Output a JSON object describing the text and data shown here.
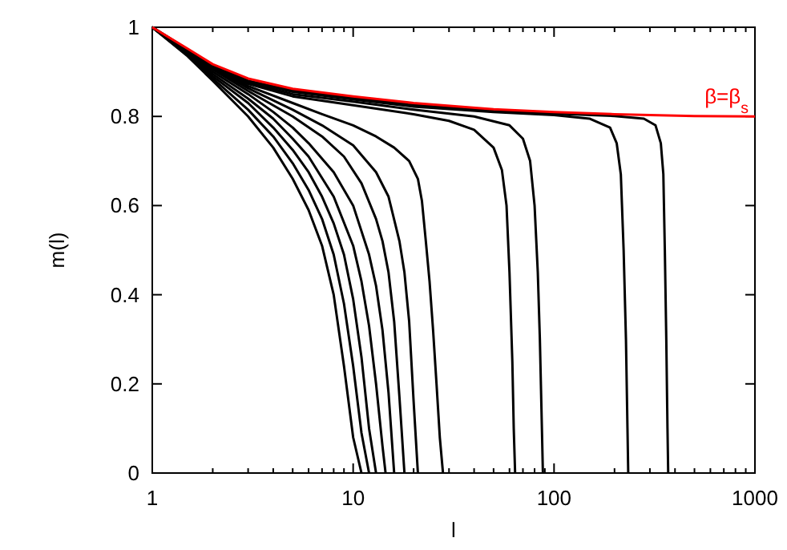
{
  "chart_data": {
    "type": "line",
    "xlabel": "l",
    "ylabel": "m(l)",
    "log": "x",
    "xlim": [
      1,
      1000
    ],
    "ylim": [
      0,
      1
    ],
    "xticks": [
      1,
      {
        "value": 2,
        "label": null
      },
      {
        "value": 3,
        "label": null
      },
      {
        "value": 4,
        "label": null
      },
      {
        "value": 5,
        "label": null
      },
      {
        "value": 6,
        "label": null
      },
      {
        "value": 7,
        "label": null
      },
      {
        "value": 8,
        "label": null
      },
      {
        "value": 9,
        "label": null
      },
      10,
      {
        "value": 20,
        "label": null
      },
      {
        "value": 30,
        "label": null
      },
      {
        "value": 40,
        "label": null
      },
      {
        "value": 50,
        "label": null
      },
      {
        "value": 60,
        "label": null
      },
      {
        "value": 70,
        "label": null
      },
      {
        "value": 80,
        "label": null
      },
      {
        "value": 90,
        "label": null
      },
      100,
      {
        "value": 200,
        "label": null
      },
      {
        "value": 300,
        "label": null
      },
      {
        "value": 400,
        "label": null
      },
      {
        "value": 500,
        "label": null
      },
      {
        "value": 600,
        "label": null
      },
      {
        "value": 700,
        "label": null
      },
      {
        "value": 800,
        "label": null
      },
      {
        "value": 900,
        "label": null
      },
      1000
    ],
    "yticks": [
      0,
      0.2,
      0.4,
      0.6,
      0.8,
      1
    ],
    "grid": false,
    "legend": false,
    "marker": "none",
    "line_style": "solid",
    "series": [
      {
        "color": "#000000",
        "x": [
          1,
          1.5,
          2,
          3,
          4,
          5,
          6,
          7,
          8,
          9,
          10,
          11
        ],
        "values": [
          1,
          0.935,
          0.88,
          0.8,
          0.73,
          0.66,
          0.59,
          0.51,
          0.4,
          0.24,
          0.08,
          0
        ]
      },
      {
        "color": "#000000",
        "x": [
          1,
          1.5,
          2,
          3,
          4,
          5,
          6,
          7,
          8,
          9,
          10,
          11,
          12
        ],
        "values": [
          1,
          0.937,
          0.885,
          0.815,
          0.755,
          0.695,
          0.635,
          0.57,
          0.49,
          0.38,
          0.24,
          0.09,
          0
        ]
      },
      {
        "color": "#000000",
        "x": [
          1,
          1.5,
          2,
          3,
          4,
          5,
          6,
          7,
          8,
          9,
          10,
          11,
          12,
          13
        ],
        "values": [
          1,
          0.939,
          0.89,
          0.83,
          0.775,
          0.725,
          0.675,
          0.62,
          0.56,
          0.49,
          0.39,
          0.26,
          0.1,
          0
        ]
      },
      {
        "color": "#000000",
        "x": [
          1,
          1.5,
          2,
          3,
          4,
          5,
          6,
          8,
          10,
          11,
          12,
          13,
          14,
          14.5
        ],
        "values": [
          1,
          0.941,
          0.895,
          0.84,
          0.795,
          0.75,
          0.71,
          0.62,
          0.51,
          0.43,
          0.33,
          0.2,
          0.06,
          0
        ]
      },
      {
        "color": "#000000",
        "x": [
          1,
          1.5,
          2,
          3,
          4,
          5,
          6,
          8,
          10,
          12,
          13,
          14,
          15,
          16
        ],
        "values": [
          1,
          0.943,
          0.9,
          0.85,
          0.81,
          0.775,
          0.74,
          0.675,
          0.6,
          0.49,
          0.42,
          0.32,
          0.18,
          0
        ]
      },
      {
        "color": "#000000",
        "x": [
          1,
          1.5,
          2,
          3,
          5,
          7,
          9,
          11,
          13,
          14,
          15,
          16,
          17,
          18
        ],
        "values": [
          1,
          0.945,
          0.905,
          0.857,
          0.8,
          0.755,
          0.71,
          0.65,
          0.57,
          0.52,
          0.45,
          0.34,
          0.17,
          0
        ]
      },
      {
        "color": "#000000",
        "x": [
          1,
          1.5,
          2,
          3,
          5,
          7,
          10,
          13,
          15,
          17,
          18,
          19,
          20,
          21
        ],
        "values": [
          1,
          0.946,
          0.908,
          0.863,
          0.815,
          0.78,
          0.735,
          0.675,
          0.62,
          0.52,
          0.45,
          0.34,
          0.16,
          0
        ]
      },
      {
        "color": "#000000",
        "x": [
          1,
          1.5,
          2,
          3,
          5,
          7,
          10,
          13,
          16,
          19,
          21,
          22,
          23,
          24,
          25,
          26,
          27,
          28
        ],
        "values": [
          1,
          0.947,
          0.91,
          0.868,
          0.83,
          0.805,
          0.78,
          0.755,
          0.73,
          0.7,
          0.66,
          0.61,
          0.52,
          0.43,
          0.32,
          0.2,
          0.08,
          0
        ]
      },
      {
        "color": "#000000",
        "x": [
          1,
          1.5,
          2,
          3,
          5,
          10,
          20,
          30,
          40,
          50,
          55,
          58,
          60,
          62,
          63,
          64
        ],
        "values": [
          1,
          0.948,
          0.912,
          0.873,
          0.845,
          0.825,
          0.805,
          0.79,
          0.77,
          0.73,
          0.68,
          0.6,
          0.45,
          0.25,
          0.1,
          0
        ]
      },
      {
        "color": "#000000",
        "x": [
          1,
          1.5,
          2,
          3,
          5,
          10,
          20,
          40,
          60,
          70,
          76,
          80,
          83,
          85,
          87,
          88
        ],
        "values": [
          1,
          0.949,
          0.913,
          0.876,
          0.85,
          0.833,
          0.815,
          0.8,
          0.78,
          0.75,
          0.7,
          0.6,
          0.45,
          0.3,
          0.1,
          0
        ]
      },
      {
        "color": "#000000",
        "x": [
          1,
          1.5,
          2,
          3,
          5,
          10,
          20,
          50,
          100,
          150,
          190,
          205,
          215,
          222,
          228,
          232,
          234
        ],
        "values": [
          1,
          0.95,
          0.914,
          0.879,
          0.855,
          0.838,
          0.822,
          0.81,
          0.803,
          0.795,
          0.775,
          0.74,
          0.67,
          0.5,
          0.3,
          0.1,
          0
        ]
      },
      {
        "color": "#000000",
        "x": [
          1,
          1.5,
          2,
          3,
          5,
          10,
          20,
          50,
          100,
          200,
          280,
          320,
          340,
          350,
          356,
          362,
          367,
          370
        ],
        "values": [
          1,
          0.95,
          0.915,
          0.88,
          0.858,
          0.842,
          0.826,
          0.812,
          0.806,
          0.801,
          0.795,
          0.78,
          0.74,
          0.67,
          0.5,
          0.3,
          0.1,
          0
        ]
      },
      {
        "name": "β=β$_{s}$",
        "color": "#ff0000",
        "x": [
          1,
          1.5,
          2,
          3,
          5,
          10,
          20,
          50,
          100,
          200,
          500,
          1000
        ],
        "values": [
          1,
          0.952,
          0.917,
          0.885,
          0.862,
          0.845,
          0.83,
          0.816,
          0.81,
          0.805,
          0.801,
          0.8
        ]
      }
    ]
  }
}
